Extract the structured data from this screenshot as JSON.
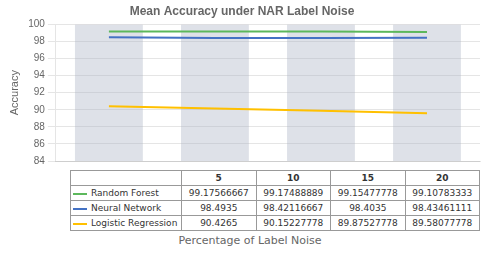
{
  "chart_data": {
    "type": "line",
    "title": "Mean Accuracy under NAR Label Noise",
    "x_label": "Percentage of Label Noise",
    "y_label": "Accuracy",
    "x": [
      5,
      10,
      15,
      20
    ],
    "series": [
      {
        "name": "Random Forest",
        "color": "#5CB85C",
        "values": [
          99.17566667,
          99.17488889,
          99.15477778,
          99.10783333
        ]
      },
      {
        "name": "Neural Network",
        "color": "#4472C4",
        "values": [
          98.4935,
          98.42116667,
          98.4035,
          98.43461111
        ]
      },
      {
        "name": "Logistic Regression",
        "color": "#FFC000",
        "values": [
          90.4265,
          90.15227778,
          89.87527778,
          89.58077778
        ]
      }
    ],
    "xlim": [
      2.5,
      22.5
    ],
    "ylim": [
      84,
      100
    ],
    "yticks": [
      84,
      86,
      88,
      90,
      92,
      94,
      96,
      98,
      100
    ],
    "grid": true,
    "tick_labels": "y"
  }
}
